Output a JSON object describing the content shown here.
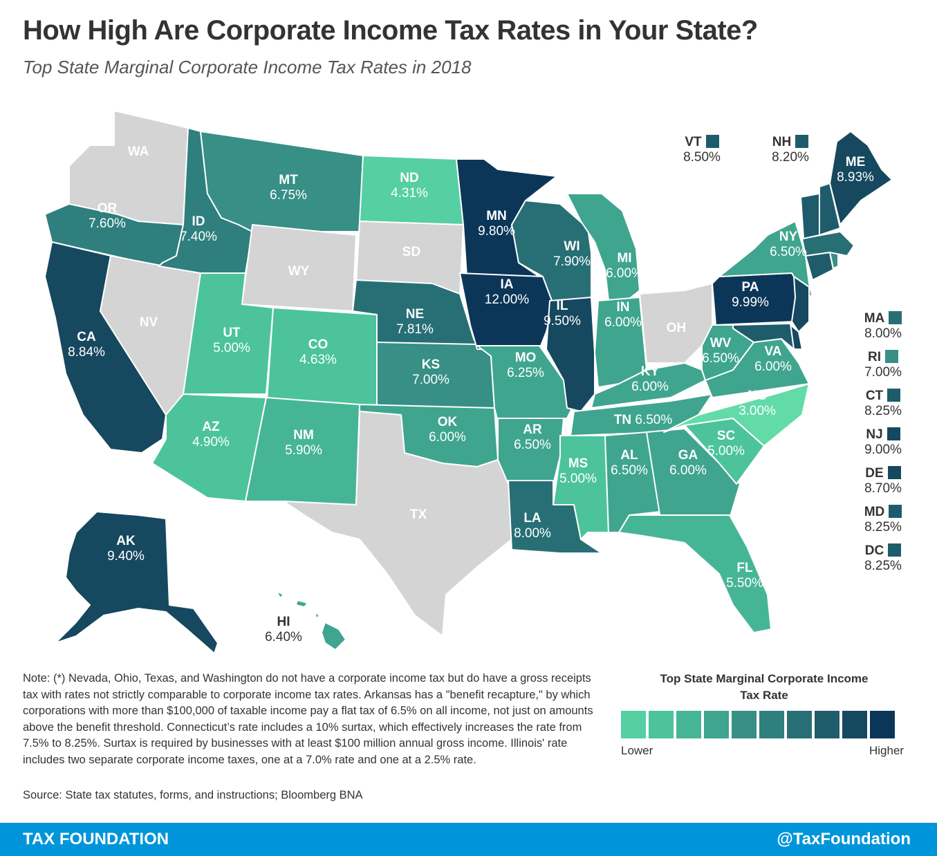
{
  "header": {
    "title": "How High Are Corporate Income Tax Rates in Your State?",
    "subtitle": "Top State Marginal Corporate Income Tax Rates in 2018"
  },
  "colors": {
    "no_tax": "#d4d4d4",
    "scale": [
      "#62dba9",
      "#56cfa2",
      "#4cc39b",
      "#46b596",
      "#3fa58e",
      "#378f86",
      "#2f7f7f",
      "#276f75",
      "#1f5c6b",
      "#16485f",
      "#0c3658"
    ]
  },
  "states": {
    "WA": {
      "abbr": "WA",
      "rate": ""
    },
    "OR": {
      "abbr": "OR",
      "rate": "7.60%"
    },
    "CA": {
      "abbr": "CA",
      "rate": "8.84%"
    },
    "NV": {
      "abbr": "NV",
      "rate": ""
    },
    "ID": {
      "abbr": "ID",
      "rate": "7.40%"
    },
    "MT": {
      "abbr": "MT",
      "rate": "6.75%"
    },
    "WY": {
      "abbr": "WY",
      "rate": ""
    },
    "UT": {
      "abbr": "UT",
      "rate": "5.00%"
    },
    "AZ": {
      "abbr": "AZ",
      "rate": "4.90%"
    },
    "CO": {
      "abbr": "CO",
      "rate": "4.63%"
    },
    "NM": {
      "abbr": "NM",
      "rate": "5.90%"
    },
    "ND": {
      "abbr": "ND",
      "rate": "4.31%"
    },
    "SD": {
      "abbr": "SD",
      "rate": ""
    },
    "NE": {
      "abbr": "NE",
      "rate": "7.81%"
    },
    "KS": {
      "abbr": "KS",
      "rate": "7.00%"
    },
    "OK": {
      "abbr": "OK",
      "rate": "6.00%"
    },
    "TX": {
      "abbr": "TX",
      "rate": ""
    },
    "MN": {
      "abbr": "MN",
      "rate": "9.80%"
    },
    "IA": {
      "abbr": "IA",
      "rate": "12.00%"
    },
    "MO": {
      "abbr": "MO",
      "rate": "6.25%"
    },
    "AR": {
      "abbr": "AR",
      "rate": "6.50%"
    },
    "LA": {
      "abbr": "LA",
      "rate": "8.00%"
    },
    "WI": {
      "abbr": "WI",
      "rate": "7.90%"
    },
    "IL": {
      "abbr": "IL",
      "rate": "9.50%"
    },
    "MI": {
      "abbr": "MI",
      "rate": "6.00%"
    },
    "IN": {
      "abbr": "IN",
      "rate": "6.00%"
    },
    "OH": {
      "abbr": "OH",
      "rate": ""
    },
    "KY": {
      "abbr": "KY",
      "rate": "6.00%"
    },
    "TN": {
      "abbr": "TN",
      "rate": "6.50%"
    },
    "MS": {
      "abbr": "MS",
      "rate": "5.00%"
    },
    "AL": {
      "abbr": "AL",
      "rate": "6.50%"
    },
    "GA": {
      "abbr": "GA",
      "rate": "6.00%"
    },
    "FL": {
      "abbr": "FL",
      "rate": "5.50%"
    },
    "SC": {
      "abbr": "SC",
      "rate": "5.00%"
    },
    "NC": {
      "abbr": "NC",
      "rate": "3.00%"
    },
    "VA": {
      "abbr": "VA",
      "rate": "6.00%"
    },
    "WV": {
      "abbr": "WV",
      "rate": "6.50%"
    },
    "PA": {
      "abbr": "PA",
      "rate": "9.99%"
    },
    "NY": {
      "abbr": "NY",
      "rate": "6.50%"
    },
    "ME": {
      "abbr": "ME",
      "rate": "8.93%"
    },
    "AK": {
      "abbr": "AK",
      "rate": "9.40%"
    },
    "HI": {
      "abbr": "HI",
      "rate": "6.40%"
    }
  },
  "callouts": {
    "VT": {
      "abbr": "VT",
      "rate": "8.50%"
    },
    "NH": {
      "abbr": "NH",
      "rate": "8.20%"
    },
    "MA": {
      "abbr": "MA",
      "rate": "8.00%"
    },
    "RI": {
      "abbr": "RI",
      "rate": "7.00%"
    },
    "CT": {
      "abbr": "CT",
      "rate": "8.25%"
    },
    "NJ": {
      "abbr": "NJ",
      "rate": "9.00%"
    },
    "DE": {
      "abbr": "DE",
      "rate": "8.70%"
    },
    "MD": {
      "abbr": "MD",
      "rate": "8.25%"
    },
    "DC": {
      "abbr": "DC",
      "rate": "8.25%"
    }
  },
  "note": "Note: (*) Nevada, Ohio, Texas, and Washington do not have a corporate income tax but do have a gross receipts tax with rates not strictly comparable to corporate income tax rates. Arkansas has a \"benefit recapture,\" by which corporations with more than $100,000 of taxable income pay a flat tax of 6.5% on all income, not just on amounts above the benefit threshold. Connecticut’s rate includes a 10% surtax, which effectively increases the rate from 7.5% to 8.25%. Surtax is required by businesses with at least $100 million annual gross income. Illinois' rate includes two separate corporate income taxes, one at a 7.0% rate and one at a 2.5% rate.",
  "source": "Source: State tax statutes, forms, and instructions; Bloomberg BNA",
  "legend": {
    "title": "Top State Marginal Corporate Income Tax Rate",
    "low": "Lower",
    "high": "Higher"
  },
  "footer": {
    "brand": "TAX FOUNDATION",
    "handle": "@TaxFoundation"
  }
}
